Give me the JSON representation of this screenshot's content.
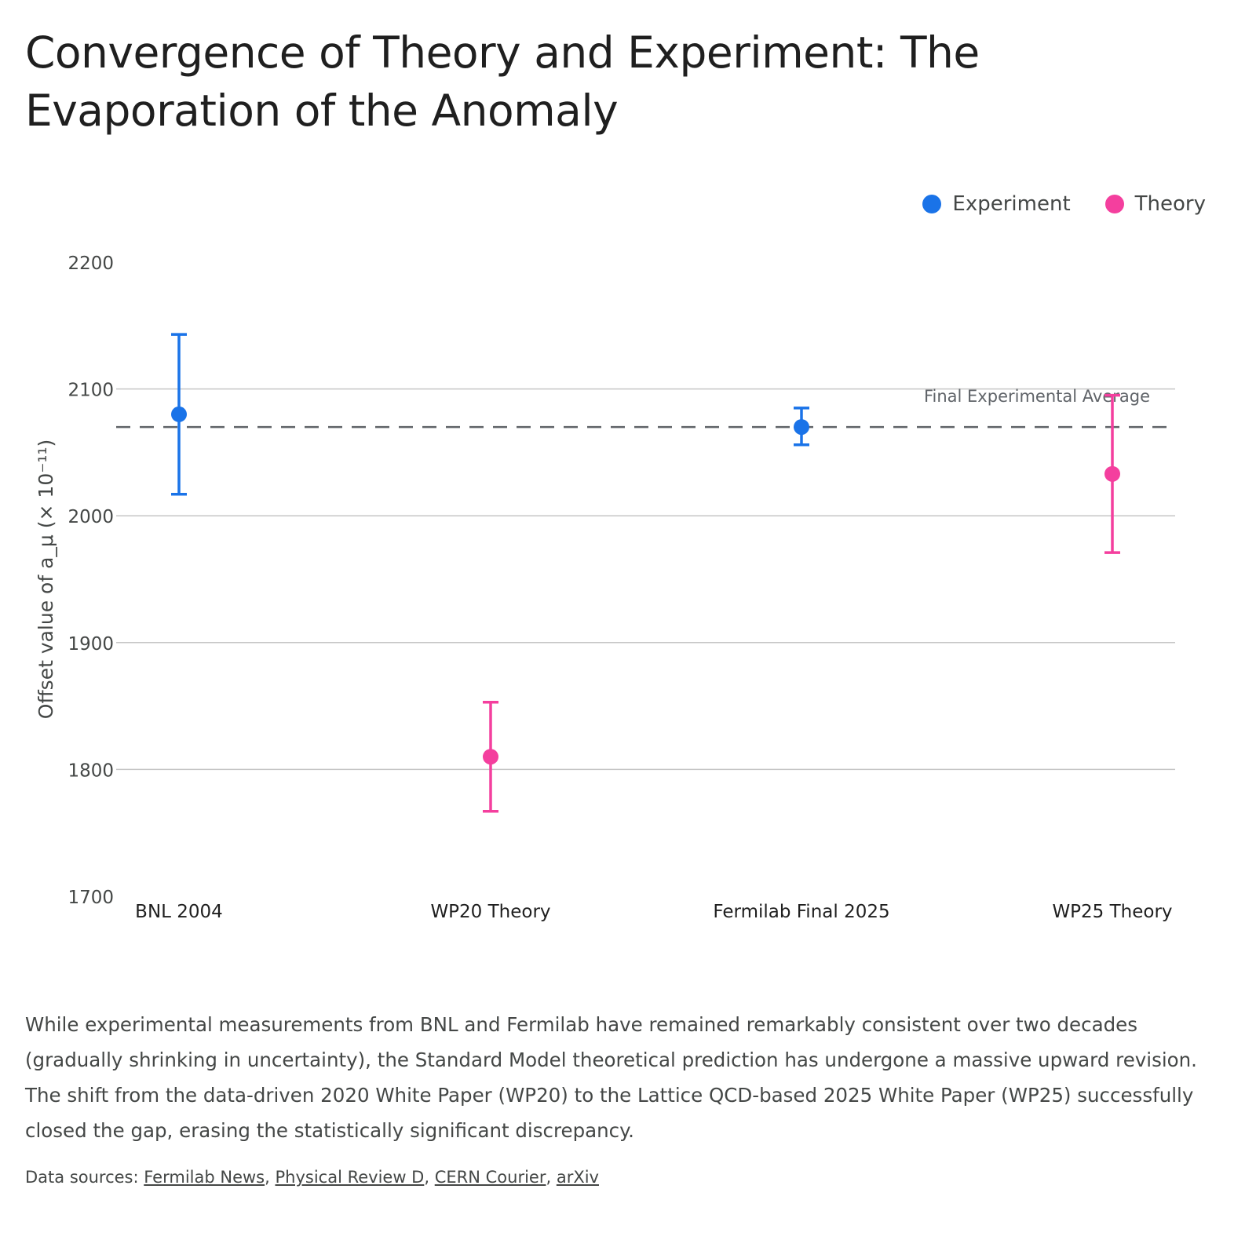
{
  "title": "Convergence of Theory and Experiment: The Evaporation of the Anomaly",
  "legend": [
    {
      "label": "Experiment",
      "color": "#1a73e8"
    },
    {
      "label": "Theory",
      "color": "#f43f9e"
    }
  ],
  "chart_data": {
    "type": "scatter",
    "ylabel": "Offset value of a_μ (× 10⁻¹¹)",
    "ylim": [
      1700,
      2200
    ],
    "yticks": [
      1700,
      1800,
      1900,
      2000,
      2100,
      2200
    ],
    "grid": true,
    "legend_position": "top-right",
    "categories": [
      "BNL 2004",
      "WP20 Theory",
      "Fermilab Final 2025",
      "WP25 Theory"
    ],
    "points": [
      {
        "category": "BNL 2004",
        "series": "Experiment",
        "value": 2080,
        "low": 2017,
        "high": 2143
      },
      {
        "category": "WP20 Theory",
        "series": "Theory",
        "value": 1810,
        "low": 1767,
        "high": 1853
      },
      {
        "category": "Fermilab Final 2025",
        "series": "Experiment",
        "value": 2070,
        "low": 2056,
        "high": 2085
      },
      {
        "category": "WP25 Theory",
        "series": "Theory",
        "value": 2033,
        "low": 1971,
        "high": 2095
      }
    ],
    "reference_line": {
      "value": 2070,
      "label": "Final Experimental Average",
      "style": "dashed",
      "color": "#5f6368"
    },
    "series_colors": {
      "Experiment": "#1a73e8",
      "Theory": "#f43f9e"
    }
  },
  "description": "While experimental measurements from BNL and Fermilab have remained remarkably consistent over two decades (gradually shrinking in uncertainty), the Standard Model theoretical prediction has undergone a massive upward revision. The shift from the data-driven 2020 White Paper (WP20) to the Lattice QCD-based 2025 White Paper (WP25) successfully closed the gap, erasing the statistically significant discrepancy.",
  "sources": {
    "prefix": "Data sources: ",
    "links": [
      "Fermilab News",
      "Physical Review D",
      "CERN Courier",
      "arXiv"
    ]
  }
}
